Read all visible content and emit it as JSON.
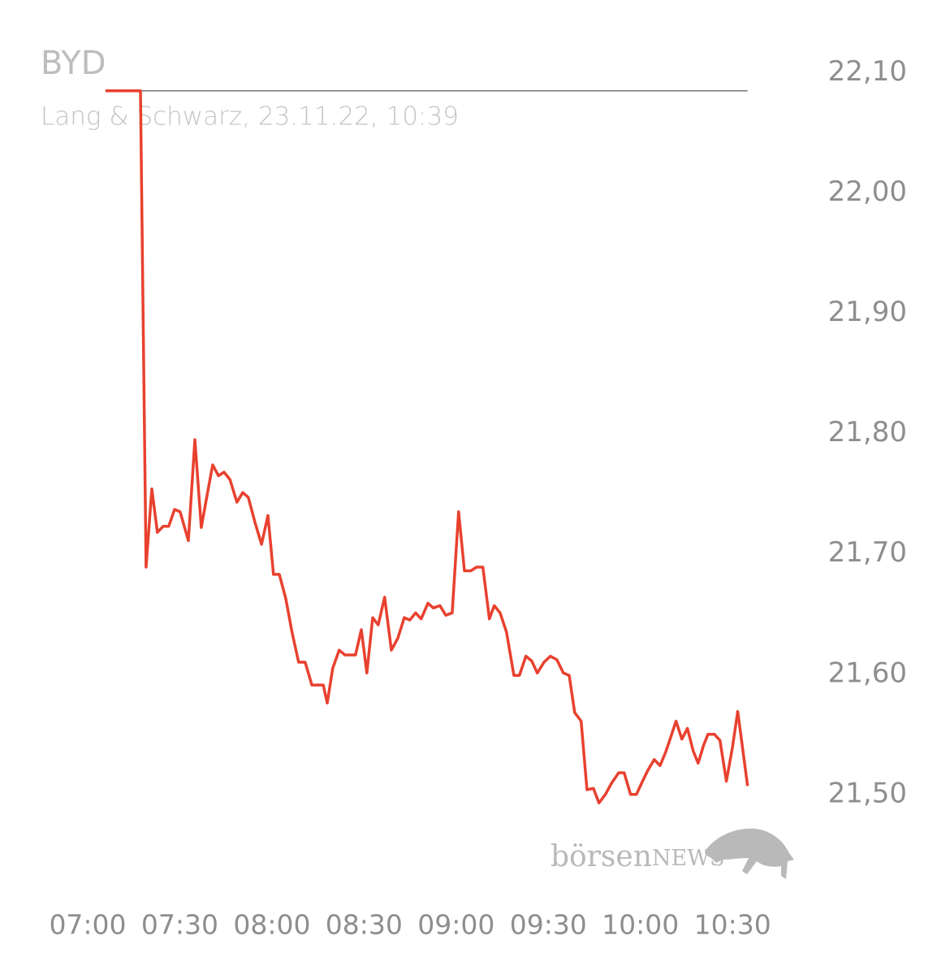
{
  "chart_data": {
    "type": "line",
    "title": "BYD",
    "subtitle": "Lang & Schwarz, 23.11.22, 10:39",
    "watermark": {
      "prefix": "börsen",
      "suffix": "NEWS"
    },
    "x": [
      425.8,
      437.2,
      439.0,
      440.9,
      442.7,
      444.6,
      446.4,
      448.3,
      450.1,
      452.8,
      454.9,
      457.0,
      458.9,
      460.7,
      462.6,
      464.4,
      466.3,
      468.6,
      470.5,
      472.3,
      474.5,
      476.6,
      478.7,
      480.5,
      482.4,
      484.5,
      486.6,
      488.7,
      490.8,
      493.0,
      495.1,
      496.7,
      498.0,
      499.8,
      501.9,
      503.8,
      505.6,
      507.2,
      509.1,
      510.9,
      512.8,
      514.6,
      516.7,
      518.9,
      521.0,
      523.1,
      524.9,
      526.8,
      528.6,
      530.8,
      532.6,
      534.7,
      536.6,
      538.7,
      540.8,
      542.7,
      544.8,
      546.6,
      548.7,
      550.8,
      552.4,
      554.3,
      556.4,
      558.8,
      560.6,
      562.7,
      564.6,
      566.4,
      568.6,
      570.7,
      572.8,
      574.9,
      576.8,
      578.6,
      580.7,
      582.6,
      584.7,
      586.5,
      588.6,
      590.5,
      592.9,
      594.7,
      596.8,
      598.7,
      600.5,
      602.4,
      604.5,
      606.4,
      608.2,
      609.8,
      611.6,
      613.5,
      615.3,
      617.2,
      618.8,
      620.6,
      622.0,
      624.1,
      625.9,
      628.0,
      629.9,
      631.7,
      634.9
    ],
    "series": [
      {
        "name": "BYD",
        "color": "#e8412f",
        "values": [
          22.085,
          22.085,
          21.689,
          21.754,
          21.718,
          21.723,
          21.723,
          21.737,
          21.735,
          21.711,
          21.795,
          21.722,
          21.749,
          21.774,
          21.765,
          21.768,
          21.762,
          21.743,
          21.751,
          21.747,
          21.726,
          21.708,
          21.732,
          21.683,
          21.683,
          21.663,
          21.634,
          21.61,
          21.61,
          21.591,
          21.591,
          21.591,
          21.576,
          21.605,
          21.62,
          21.616,
          21.616,
          21.616,
          21.637,
          21.601,
          21.647,
          21.641,
          21.664,
          21.62,
          21.63,
          21.647,
          21.645,
          21.651,
          21.646,
          21.659,
          21.655,
          21.657,
          21.649,
          21.651,
          21.735,
          21.686,
          21.686,
          21.689,
          21.689,
          21.646,
          21.657,
          21.651,
          21.635,
          21.599,
          21.599,
          21.615,
          21.611,
          21.601,
          21.61,
          21.615,
          21.612,
          21.601,
          21.599,
          21.568,
          21.561,
          21.504,
          21.505,
          21.493,
          21.5,
          21.509,
          21.518,
          21.518,
          21.5,
          21.5,
          21.51,
          21.52,
          21.529,
          21.524,
          21.535,
          21.547,
          21.561,
          21.546,
          21.555,
          21.536,
          21.526,
          21.541,
          21.55,
          21.55,
          21.545,
          21.511,
          21.538,
          21.569,
          21.507
        ]
      }
    ],
    "reference_line": {
      "value": 22.085,
      "color": "#777777"
    },
    "xlim": [
      420,
      640
    ],
    "ylim": [
      21.485,
      22.12
    ],
    "xticks": [
      {
        "value": 420,
        "label": "07:00"
      },
      {
        "value": 450,
        "label": "07:30"
      },
      {
        "value": 480,
        "label": "08:00"
      },
      {
        "value": 510,
        "label": "08:30"
      },
      {
        "value": 540,
        "label": "09:00"
      },
      {
        "value": 570,
        "label": "09:30"
      },
      {
        "value": 600,
        "label": "10:00"
      },
      {
        "value": 630,
        "label": "10:30"
      }
    ],
    "yticks": [
      {
        "value": 21.5,
        "label": "21,50"
      },
      {
        "value": 21.6,
        "label": "21,60"
      },
      {
        "value": 21.7,
        "label": "21,70"
      },
      {
        "value": 21.8,
        "label": "21,80"
      },
      {
        "value": 21.9,
        "label": "21,90"
      },
      {
        "value": 22.0,
        "label": "22,00"
      },
      {
        "value": 22.1,
        "label": "22,10"
      }
    ],
    "grid": false
  }
}
